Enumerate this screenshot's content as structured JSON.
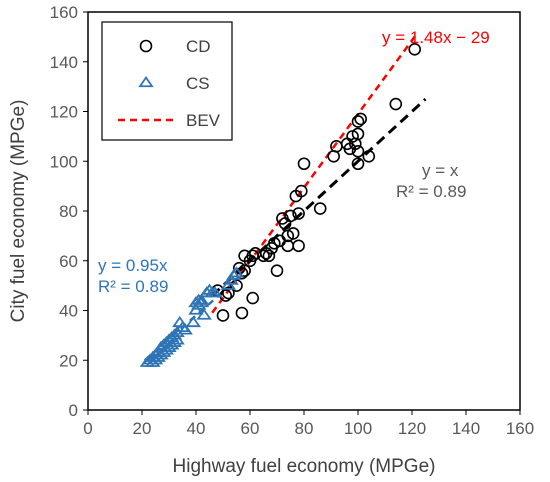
{
  "chart_data": {
    "type": "scatter",
    "xlabel": "Highway fuel economy (MPGe)",
    "ylabel": "City fuel economy (MPGe)",
    "xlim": [
      0,
      160
    ],
    "ylim": [
      0,
      160
    ],
    "x_ticks": [
      0,
      20,
      40,
      60,
      80,
      100,
      120,
      140,
      160
    ],
    "y_ticks": [
      0,
      20,
      40,
      60,
      80,
      100,
      120,
      140,
      160
    ],
    "grid": false,
    "legend_position": "top-left",
    "series": [
      {
        "name": "CD",
        "marker": "circle",
        "color": "#000000",
        "points": [
          [
            121,
            145
          ],
          [
            114,
            123
          ],
          [
            104,
            102
          ],
          [
            101,
            117
          ],
          [
            100,
            116
          ],
          [
            100,
            111
          ],
          [
            99,
            107
          ],
          [
            100,
            104
          ],
          [
            98,
            110
          ],
          [
            97,
            105
          ],
          [
            96,
            107
          ],
          [
            100,
            99
          ],
          [
            92,
            106
          ],
          [
            91,
            102
          ],
          [
            80,
            99
          ],
          [
            79,
            88
          ],
          [
            77,
            86
          ],
          [
            76,
            71
          ],
          [
            75,
            78
          ],
          [
            74,
            70
          ],
          [
            74,
            66
          ],
          [
            73,
            75
          ],
          [
            72,
            77
          ],
          [
            71,
            68
          ],
          [
            70,
            56
          ],
          [
            78,
            79
          ],
          [
            78,
            66
          ],
          [
            86,
            81
          ],
          [
            69,
            67
          ],
          [
            68,
            65
          ],
          [
            67,
            62
          ],
          [
            66,
            63
          ],
          [
            65,
            62
          ],
          [
            62,
            63
          ],
          [
            61,
            62
          ],
          [
            60,
            60
          ],
          [
            61,
            45
          ],
          [
            58,
            62
          ],
          [
            58,
            56
          ],
          [
            57,
            55
          ],
          [
            56,
            57
          ],
          [
            55,
            50
          ],
          [
            52,
            47
          ],
          [
            51,
            46
          ],
          [
            50,
            38
          ],
          [
            48,
            48
          ],
          [
            57,
            39
          ]
        ]
      },
      {
        "name": "CS",
        "marker": "triangle",
        "color": "#2f75b5",
        "points": [
          [
            22,
            19
          ],
          [
            23,
            20
          ],
          [
            24,
            21
          ],
          [
            24,
            19
          ],
          [
            25,
            22
          ],
          [
            25,
            20
          ],
          [
            26,
            23
          ],
          [
            26,
            21
          ],
          [
            27,
            22
          ],
          [
            27,
            25
          ],
          [
            28,
            23
          ],
          [
            28,
            26
          ],
          [
            29,
            24
          ],
          [
            29,
            27
          ],
          [
            30,
            25
          ],
          [
            30,
            28
          ],
          [
            31,
            26
          ],
          [
            31,
            29
          ],
          [
            32,
            27
          ],
          [
            32,
            30
          ],
          [
            33,
            28
          ],
          [
            33,
            31
          ],
          [
            34,
            35
          ],
          [
            35,
            33
          ],
          [
            36,
            32
          ],
          [
            39,
            35
          ],
          [
            40,
            40
          ],
          [
            40,
            43
          ],
          [
            41,
            42
          ],
          [
            41,
            44
          ],
          [
            42,
            44
          ],
          [
            42,
            43
          ],
          [
            43,
            38
          ],
          [
            44,
            47
          ],
          [
            45,
            48
          ],
          [
            46,
            47
          ],
          [
            47,
            47
          ],
          [
            52,
            50
          ],
          [
            53,
            52
          ],
          [
            54,
            54
          ],
          [
            55,
            55
          ]
        ]
      }
    ],
    "lines": [
      {
        "name": "BEV",
        "style": "dashed",
        "color": "#ff0000",
        "slope": 1.48,
        "intercept": -29,
        "x_range": [
          46,
          121
        ],
        "label": "y = 1.48x − 29"
      },
      {
        "name": "",
        "style": "dashed",
        "color": "#000000",
        "slope": 1.0,
        "intercept": 0,
        "x_range": [
          46,
          125
        ],
        "label": "y = x",
        "r2_label": "R² = 0.89"
      },
      {
        "name": "",
        "style": "dashed",
        "color": "#2f75b5",
        "slope": 0.95,
        "intercept": 0,
        "x_range": [
          21,
          56
        ],
        "label": "y = 0.95x",
        "r2_label": "R² = 0.89"
      }
    ]
  },
  "colors": {
    "cd": "#000000",
    "cs": "#2f75b5",
    "bev": "#ff0000",
    "unity_label": "#595959"
  }
}
